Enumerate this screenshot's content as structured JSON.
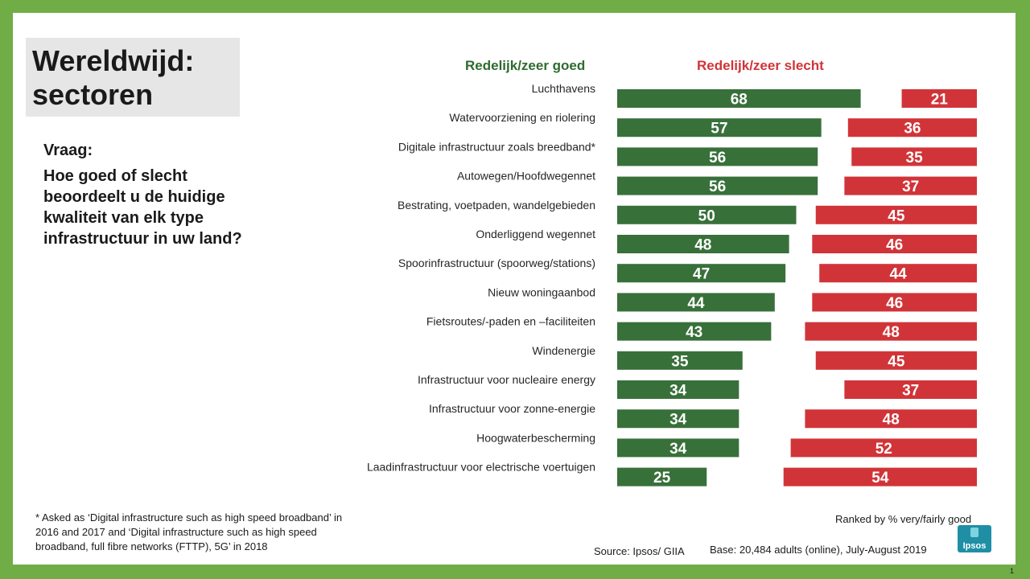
{
  "title": "Wereldwijd: sectoren",
  "question": {
    "label": "Vraag:",
    "text": "Hoe goed of slecht beoordeelt u de huidige kwaliteit van elk type infrastructuur  in uw land?"
  },
  "legend": {
    "good": "Redelijk/zeer goed",
    "bad": "Redelijk/zeer slecht"
  },
  "colors": {
    "good": "#38703a",
    "bad": "#d13438",
    "frame": "#70ad47",
    "title_box": "#e7e6e6"
  },
  "chart_data": {
    "type": "bar",
    "orientation": "horizontal",
    "categories": [
      "Luchthavens",
      "Watervoorziening en riolering",
      "Digitale infrastructuur zoals breedband*",
      "Autowegen/Hoofdwegennet",
      "Bestrating, voetpaden, wandelgebieden",
      "Onderliggend wegennet",
      "Spoorinfrastructuur (spoorweg/stations)",
      "Nieuw woningaanbod",
      "Fietsroutes/-paden en –faciliteiten",
      "Windenergie",
      "Infrastructuur voor nucleaire energy",
      "Infrastructuur voor zonne-energie",
      "Hoogwaterbescherming",
      "Laadinfrastructuur voor electrische voertuigen"
    ],
    "series": [
      {
        "name": "Redelijk/zeer goed",
        "values": [
          68,
          57,
          56,
          56,
          50,
          48,
          47,
          44,
          43,
          35,
          34,
          34,
          34,
          25
        ]
      },
      {
        "name": "Redelijk/zeer slecht",
        "values": [
          21,
          36,
          35,
          37,
          45,
          46,
          44,
          46,
          48,
          45,
          37,
          48,
          52,
          54
        ]
      }
    ],
    "xlim": [
      0,
      100
    ]
  },
  "footnote": "* Asked as ‘Digital infrastructure such as high speed broadband’ in 2016 and 2017 and ‘Digital infrastructure such as high speed broadband, full fibre networks (FTTP), 5G’ in 2018",
  "ranked": "Ranked by % very/fairly good",
  "source": "Source:  Ipsos/ GIIA",
  "base": "Base:  20,484 adults (online),  July-August 2019",
  "logo_text": "Ipsos",
  "page_number": "1"
}
